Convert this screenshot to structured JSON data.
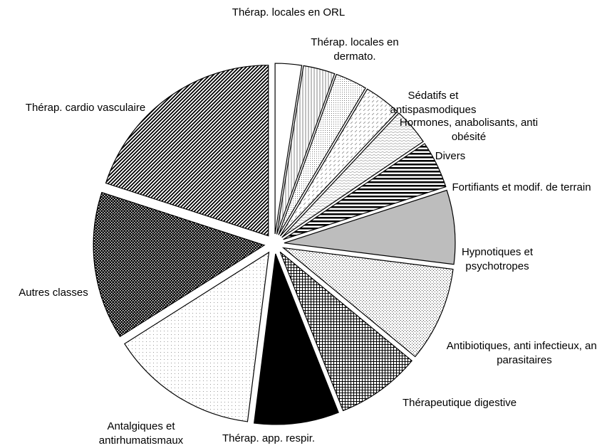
{
  "chart_data": {
    "type": "pie",
    "categories": [
      "Thérap. locales en ORL",
      "Thérap. locales en dermato.",
      "Sédatifs et antispasmodiques",
      "Hormones, anabolisants, anti obésité",
      "Divers",
      "Fortifiants et modif. de terrain",
      "Hypnotiques et psychotropes",
      "Antibiotiques, anti infectieux, anti parasitaires",
      "Thérapeutique digestive",
      "Thérap. app. respir.",
      "Antalgiques et antirhumatismaux",
      "Autres classes",
      "Thérap. cardio vasculaire"
    ],
    "values": [
      2.5,
      3,
      3,
      3.5,
      3.5,
      4.5,
      7,
      9,
      8,
      8,
      14,
      14,
      20
    ],
    "patterns": [
      "white",
      "vlines",
      "finedots",
      "dashdiag",
      "zigzag",
      "hlines",
      "gray",
      "dots",
      "grid",
      "black",
      "lightdots",
      "checker",
      "darkzigzag"
    ],
    "start_angle": 0,
    "direction": "clockwise",
    "exploded": true
  }
}
